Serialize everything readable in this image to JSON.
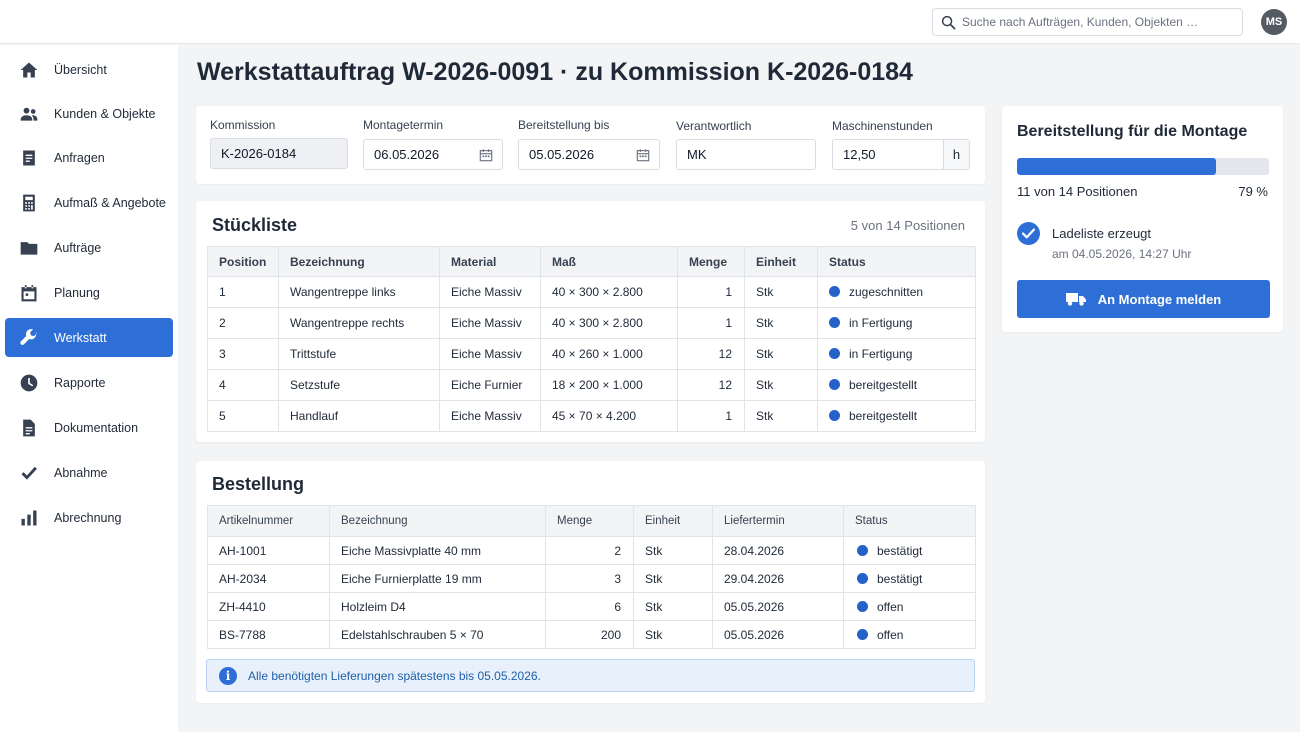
{
  "search": {
    "placeholder": "Suche nach Aufträgen, Kunden, Objekten …"
  },
  "user": {
    "initials": "MS"
  },
  "sidebar": {
    "items": [
      {
        "label": "Übersicht",
        "icon": "home-icon"
      },
      {
        "label": "Kunden & Objekte",
        "icon": "people-icon"
      },
      {
        "label": "Anfragen",
        "icon": "document-icon"
      },
      {
        "label": "Aufmaß & Angebote",
        "icon": "calculator-icon"
      },
      {
        "label": "Aufträge",
        "icon": "folder-icon"
      },
      {
        "label": "Planung",
        "icon": "calendar-icon"
      },
      {
        "label": "Werkstatt",
        "icon": "wrench-icon",
        "active": true
      },
      {
        "label": "Rapporte",
        "icon": "clock-icon"
      },
      {
        "label": "Dokumentation",
        "icon": "file-icon"
      },
      {
        "label": "Abnahme",
        "icon": "checkmark-icon"
      },
      {
        "label": "Abrechnung",
        "icon": "bar-chart-icon"
      }
    ]
  },
  "page": {
    "title": "Werkstattauftrag W-2026-0091 · zu Kommission K-2026-0184"
  },
  "form": {
    "kommission": {
      "label": "Kommission",
      "value": "K-2026-0184"
    },
    "montagetermin": {
      "label": "Montagetermin",
      "value": "06.05.2026"
    },
    "bereitstellung": {
      "label": "Bereitstellung bis",
      "value": "05.05.2026"
    },
    "verantwortlich": {
      "label": "Verantwortlich",
      "value": "MK"
    },
    "maschinenstunden": {
      "label": "Maschinenstunden",
      "value": "12,50",
      "unit": "h"
    }
  },
  "stueckliste": {
    "title": "Stückliste",
    "count": "5 von 14 Positionen",
    "columns": [
      "Position",
      "Bezeichnung",
      "Material",
      "Maß",
      "Menge",
      "Einheit",
      "Status"
    ],
    "rows": [
      {
        "pos": "1",
        "bezeichnung": "Wangentreppe links",
        "material": "Eiche Massiv",
        "mass": "40 × 300 × 2.800",
        "menge": "1",
        "einheit": "Stk",
        "status": "zugeschnitten"
      },
      {
        "pos": "2",
        "bezeichnung": "Wangentreppe rechts",
        "material": "Eiche Massiv",
        "mass": "40 × 300 × 2.800",
        "menge": "1",
        "einheit": "Stk",
        "status": "in Fertigung"
      },
      {
        "pos": "3",
        "bezeichnung": "Trittstufe",
        "material": "Eiche Massiv",
        "mass": "40 × 260 × 1.000",
        "menge": "12",
        "einheit": "Stk",
        "status": "in Fertigung"
      },
      {
        "pos": "4",
        "bezeichnung": "Setzstufe",
        "material": "Eiche Furnier",
        "mass": "18 × 200 × 1.000",
        "menge": "12",
        "einheit": "Stk",
        "status": "bereitgestellt"
      },
      {
        "pos": "5",
        "bezeichnung": "Handlauf",
        "material": "Eiche Massiv",
        "mass": "45 × 70 × 4.200",
        "menge": "1",
        "einheit": "Stk",
        "status": "bereitgestellt"
      }
    ]
  },
  "bestellung": {
    "title": "Bestellung",
    "columns": [
      "Artikelnummer",
      "Bezeichnung",
      "Menge",
      "Einheit",
      "Liefertermin",
      "Status"
    ],
    "rows": [
      {
        "artikel": "AH-1001",
        "bezeichnung": "Eiche Massivplatte 40 mm",
        "menge": "2",
        "einheit": "Stk",
        "termin": "28.04.2026",
        "status": "bestätigt"
      },
      {
        "artikel": "AH-2034",
        "bezeichnung": "Eiche Furnierplatte 19 mm",
        "menge": "3",
        "einheit": "Stk",
        "termin": "29.04.2026",
        "status": "bestätigt"
      },
      {
        "artikel": "ZH-4410",
        "bezeichnung": "Holzleim D4",
        "menge": "6",
        "einheit": "Stk",
        "termin": "05.05.2026",
        "status": "offen"
      },
      {
        "artikel": "BS-7788",
        "bezeichnung": "Edelstahlschrauben 5 × 70",
        "menge": "200",
        "einheit": "Stk",
        "termin": "05.05.2026",
        "status": "offen"
      }
    ],
    "info": "Alle benötigten Lieferungen spätestens bis 05.05.2026."
  },
  "bereitstellung_card": {
    "title": "Bereitstellung für die Montage",
    "progress_fraction": 0.79,
    "progress_text": "11 von 14 Positionen",
    "progress_percent": "79 %",
    "ladeliste_title": "Ladeliste erzeugt",
    "ladeliste_time": "am 04.05.2026, 14:27 Uhr",
    "button_label": "An Montage melden"
  },
  "colors": {
    "accent": "#2d6fd6",
    "status_dot": "#2461c9",
    "info_bg": "#e8f1fb"
  }
}
